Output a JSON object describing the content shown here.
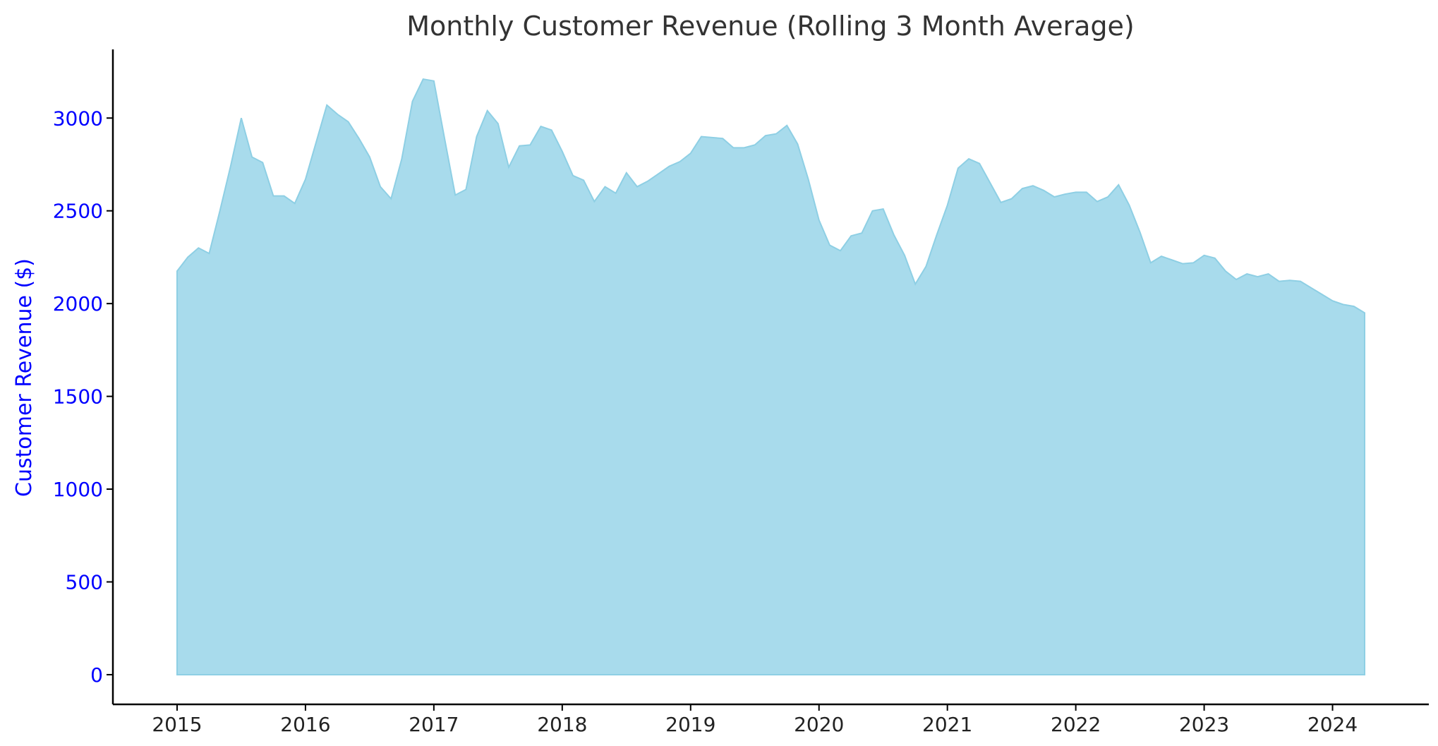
{
  "chart_data": {
    "type": "area",
    "title": "Monthly Customer Revenue (Rolling 3 Month Average)",
    "xlabel": "",
    "ylabel": "Customer Revenue ($)",
    "x_ticks": [
      "2015",
      "2016",
      "2017",
      "2018",
      "2019",
      "2020",
      "2021",
      "2022",
      "2023",
      "2024"
    ],
    "y_ticks": [
      0,
      500,
      1000,
      1500,
      2000,
      2500,
      3000
    ],
    "xlim": [
      "2014-07",
      "2024-10"
    ],
    "ylim": [
      -160,
      3370
    ],
    "grid": false,
    "legend": "none",
    "colors": {
      "fill": "#a8dbec",
      "edge": "#8ecfe4",
      "y_axis_text": "#0000ff"
    },
    "x": [
      "2015-01",
      "2015-02",
      "2015-03",
      "2015-04",
      "2015-05",
      "2015-06",
      "2015-07",
      "2015-08",
      "2015-09",
      "2015-10",
      "2015-11",
      "2015-12",
      "2016-01",
      "2016-02",
      "2016-03",
      "2016-04",
      "2016-05",
      "2016-06",
      "2016-07",
      "2016-08",
      "2016-09",
      "2016-10",
      "2016-11",
      "2016-12",
      "2017-01",
      "2017-02",
      "2017-03",
      "2017-04",
      "2017-05",
      "2017-06",
      "2017-07",
      "2017-08",
      "2017-09",
      "2017-10",
      "2017-11",
      "2017-12",
      "2018-01",
      "2018-02",
      "2018-03",
      "2018-04",
      "2018-05",
      "2018-06",
      "2018-07",
      "2018-08",
      "2018-09",
      "2018-10",
      "2018-11",
      "2018-12",
      "2019-01",
      "2019-02",
      "2019-03",
      "2019-04",
      "2019-05",
      "2019-06",
      "2019-07",
      "2019-08",
      "2019-09",
      "2019-10",
      "2019-11",
      "2019-12",
      "2020-01",
      "2020-02",
      "2020-03",
      "2020-04",
      "2020-05",
      "2020-06",
      "2020-07",
      "2020-08",
      "2020-09",
      "2020-10",
      "2020-11",
      "2020-12",
      "2021-01",
      "2021-02",
      "2021-03",
      "2021-04",
      "2021-05",
      "2021-06",
      "2021-07",
      "2021-08",
      "2021-09",
      "2021-10",
      "2021-11",
      "2021-12",
      "2022-01",
      "2022-02",
      "2022-03",
      "2022-04",
      "2022-05",
      "2022-06",
      "2022-07",
      "2022-08",
      "2022-09",
      "2022-10",
      "2022-11",
      "2022-12",
      "2023-01",
      "2023-02",
      "2023-03",
      "2023-04",
      "2023-05",
      "2023-06",
      "2023-07",
      "2023-08",
      "2023-09",
      "2023-10",
      "2023-11",
      "2023-12",
      "2024-01",
      "2024-02",
      "2024-03",
      "2024-04"
    ],
    "values": [
      2175,
      2250,
      2300,
      2270,
      2500,
      2740,
      3000,
      2790,
      2760,
      2580,
      2580,
      2540,
      2670,
      2870,
      3070,
      3020,
      2980,
      2890,
      2790,
      2630,
      2565,
      2780,
      3090,
      3210,
      3200,
      2890,
      2585,
      2615,
      2900,
      3040,
      2970,
      2735,
      2850,
      2855,
      2955,
      2935,
      2820,
      2690,
      2665,
      2550,
      2630,
      2595,
      2705,
      2630,
      2660,
      2700,
      2740,
      2765,
      2810,
      2900,
      2895,
      2890,
      2840,
      2840,
      2855,
      2905,
      2915,
      2960,
      2860,
      2670,
      2450,
      2315,
      2285,
      2365,
      2380,
      2500,
      2510,
      2370,
      2260,
      2105,
      2200,
      2370,
      2530,
      2730,
      2780,
      2755,
      2650,
      2545,
      2565,
      2620,
      2635,
      2610,
      2575,
      2590,
      2600,
      2600,
      2550,
      2575,
      2640,
      2530,
      2385,
      2220,
      2255,
      2235,
      2215,
      2220,
      2260,
      2245,
      2175,
      2130,
      2160,
      2145,
      2160,
      2120,
      2125,
      2120,
      2085,
      2050,
      2015,
      1995,
      1985,
      1950
    ]
  }
}
